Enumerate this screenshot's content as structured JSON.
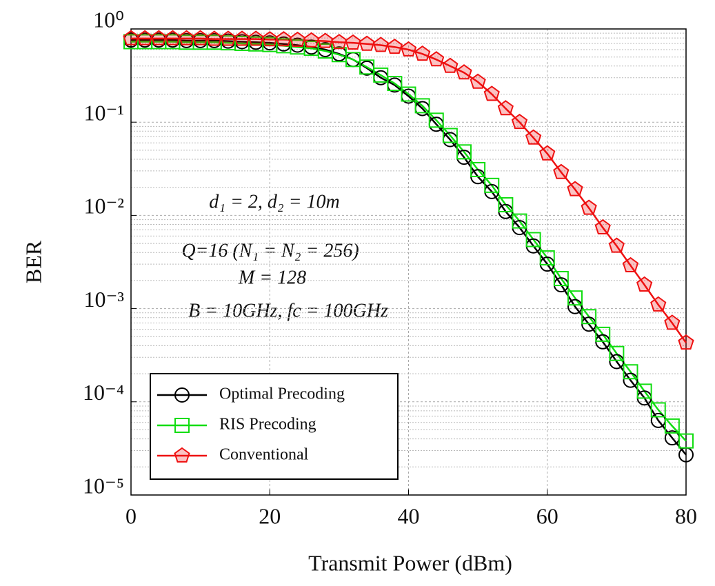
{
  "chart_data": {
    "type": "line",
    "xlabel": "Transmit Power (dBm)",
    "ylabel": "BER",
    "x": [
      0,
      2,
      4,
      6,
      8,
      10,
      12,
      14,
      16,
      18,
      20,
      22,
      24,
      26,
      28,
      30,
      32,
      34,
      36,
      38,
      40,
      42,
      44,
      46,
      48,
      50,
      52,
      54,
      56,
      58,
      60,
      62,
      64,
      66,
      68,
      70,
      72,
      74,
      76,
      78,
      80
    ],
    "series": [
      {
        "name": "Optimal Precoding",
        "color": "#000000",
        "marker": "circle",
        "values": [
          0.76,
          0.76,
          0.76,
          0.76,
          0.75,
          0.75,
          0.75,
          0.74,
          0.73,
          0.72,
          0.71,
          0.69,
          0.67,
          0.64,
          0.6,
          0.54,
          0.47,
          0.38,
          0.3,
          0.25,
          0.19,
          0.14,
          0.095,
          0.065,
          0.042,
          0.026,
          0.018,
          0.011,
          0.0074,
          0.0047,
          0.003,
          0.0018,
          0.00105,
          0.00068,
          0.00044,
          0.00027,
          0.00017,
          0.00011,
          6.3e-05,
          4.1e-05,
          2.7e-05
        ]
      },
      {
        "name": "RIS Precoding",
        "color": "#11dd11",
        "marker": "square",
        "values": [
          0.73,
          0.73,
          0.73,
          0.73,
          0.72,
          0.72,
          0.72,
          0.71,
          0.7,
          0.69,
          0.68,
          0.66,
          0.64,
          0.62,
          0.58,
          0.53,
          0.47,
          0.39,
          0.32,
          0.26,
          0.2,
          0.15,
          0.105,
          0.072,
          0.048,
          0.031,
          0.021,
          0.013,
          0.0087,
          0.0055,
          0.0035,
          0.0021,
          0.0013,
          0.00082,
          0.00053,
          0.00033,
          0.00021,
          0.00013,
          8.2e-05,
          5.5e-05,
          3.8e-05
        ]
      },
      {
        "name": "Conventional",
        "color": "#ee1111",
        "marker": "pentagon",
        "values": [
          0.79,
          0.79,
          0.79,
          0.79,
          0.79,
          0.79,
          0.78,
          0.78,
          0.78,
          0.78,
          0.77,
          0.77,
          0.76,
          0.75,
          0.74,
          0.72,
          0.71,
          0.69,
          0.67,
          0.64,
          0.6,
          0.54,
          0.47,
          0.4,
          0.34,
          0.27,
          0.2,
          0.14,
          0.1,
          0.068,
          0.046,
          0.029,
          0.019,
          0.012,
          0.0074,
          0.0047,
          0.0029,
          0.0018,
          0.0011,
          0.0007,
          0.00043
        ]
      }
    ],
    "xlim": [
      0,
      80
    ],
    "xticks": [
      0,
      20,
      40,
      60,
      80
    ],
    "ylim": [
      1e-05,
      1
    ],
    "log_y": true,
    "yticks": [
      {
        "value": 1,
        "label": "10⁰"
      },
      {
        "value": 0.1,
        "label": "10⁻¹"
      },
      {
        "value": 0.01,
        "label": "10⁻²"
      },
      {
        "value": 0.001,
        "label": "10⁻³"
      },
      {
        "value": 0.0001,
        "label": "10⁻⁴"
      },
      {
        "value": 1e-05,
        "label": "10⁻⁵"
      }
    ],
    "grid": true,
    "minor_grid": true,
    "legend_loc": "lower left",
    "annotations": [
      "d₁ = 2, d₂ = 10m",
      "Q=16 (N₁ = N₂ = 256)",
      "M = 128",
      "B = 10GHz, fc = 100GHz"
    ]
  }
}
